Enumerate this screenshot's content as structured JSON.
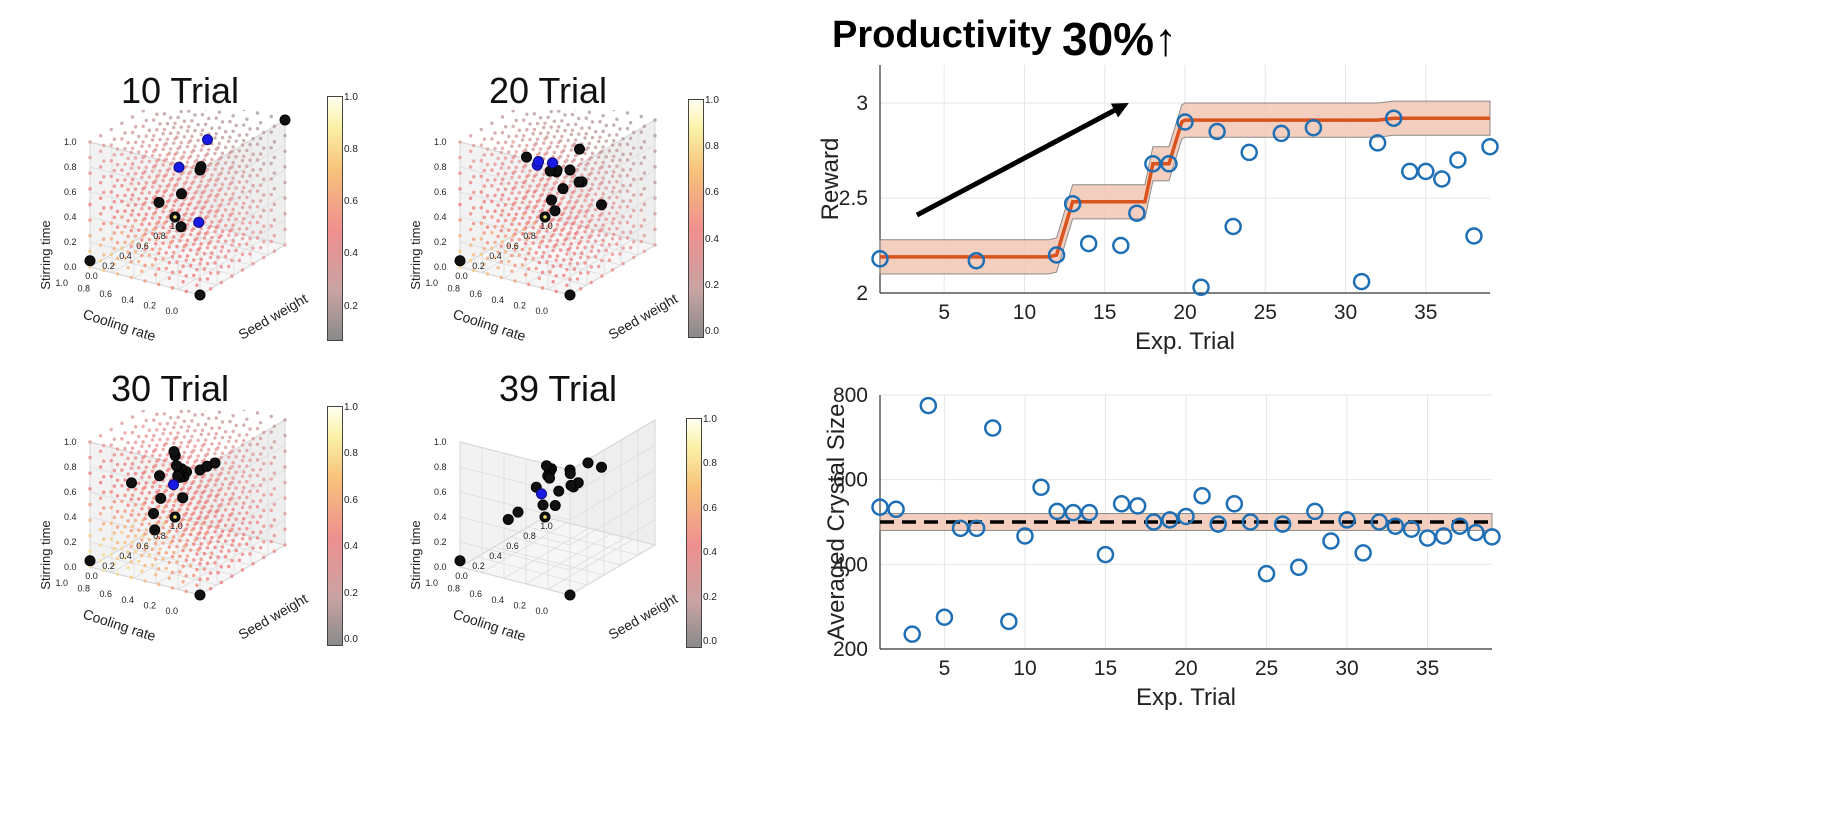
{
  "headline": {
    "title": "Productivity",
    "percent": "30%",
    "arrow": "↑"
  },
  "panels": [
    {
      "title": "10 Trial",
      "cbar_ticks": [
        "1.0",
        "0.8",
        "0.6",
        "0.4",
        "0.2"
      ]
    },
    {
      "title": "20 Trial",
      "cbar_ticks": [
        "1.0",
        "0.8",
        "0.6",
        "0.4",
        "0.2",
        "0.0"
      ]
    },
    {
      "title": "30 Trial",
      "cbar_ticks": [
        "1.0",
        "0.8",
        "0.6",
        "0.4",
        "0.2",
        "0.0"
      ]
    },
    {
      "title": "39 Trial",
      "cbar_ticks": [
        "1.0",
        "0.8",
        "0.6",
        "0.4",
        "0.2",
        "0.0"
      ]
    }
  ],
  "cube_axes": {
    "x_label": "Cooling rate",
    "y_label": "Seed weight",
    "z_label": "Stirring time",
    "x_ticks": [
      "0.0",
      "0.2",
      "0.4",
      "0.6",
      "0.8",
      "1.0"
    ],
    "y_ticks": [
      "1.0",
      "0.8",
      "0.6",
      "0.4",
      "0.2",
      "0.0"
    ],
    "z_ticks": [
      "0.0",
      "0.2",
      "0.4",
      "0.6",
      "0.8",
      "1.0"
    ]
  },
  "colors": {
    "series": "#1f6fb5",
    "mean_line": "#d9531e",
    "band": "#f3c6b5",
    "sampled": "#111111",
    "proposal": "#1a1ae6"
  },
  "chart_data": [
    {
      "type": "scatter",
      "title": "",
      "xlabel": "Exp. Trial",
      "ylabel": "Reward",
      "xlim": [
        1,
        39
      ],
      "ylim": [
        2,
        3.2
      ],
      "x_ticks": [
        5,
        10,
        15,
        20,
        25,
        30,
        35
      ],
      "y_ticks": [
        2,
        2.5,
        3
      ],
      "y_tick_labels": [
        "2",
        "2.5",
        "3"
      ],
      "grid": true,
      "series": [
        {
          "x": [
            1,
            7,
            12,
            13,
            14,
            16,
            17,
            18,
            19,
            20,
            21,
            22,
            23,
            24,
            26,
            28,
            31,
            32,
            33,
            34,
            35,
            36,
            37,
            38,
            39
          ],
          "y": [
            2.18,
            2.17,
            2.2,
            2.47,
            2.26,
            2.25,
            2.42,
            2.68,
            2.68,
            2.9,
            2.03,
            2.85,
            2.35,
            2.74,
            2.84,
            2.87,
            2.06,
            2.79,
            2.92,
            2.64,
            2.64,
            2.6,
            2.7,
            2.3,
            2.77
          ]
        },
        {
          "x": [
            1,
            11.5,
            12,
            13,
            17.5,
            18,
            19,
            19.8,
            20,
            32,
            33,
            39
          ],
          "y": [
            2.19,
            2.19,
            2.2,
            2.48,
            2.48,
            2.68,
            2.68,
            2.9,
            2.91,
            2.91,
            2.92,
            2.92
          ]
        }
      ],
      "band_halfwidth": 0.09,
      "annotations": [
        {
          "type": "arrow",
          "from": [
            3.3,
            2.41
          ],
          "to": [
            16.5,
            3.0
          ]
        }
      ]
    },
    {
      "type": "scatter",
      "title": "",
      "xlabel": "Exp. Trial",
      "ylabel": "Averaged Crystal Size",
      "xlim": [
        1,
        39
      ],
      "ylim": [
        200,
        800
      ],
      "x_ticks": [
        5,
        10,
        15,
        20,
        25,
        30,
        35
      ],
      "y_ticks": [
        200,
        400,
        600,
        800
      ],
      "grid": true,
      "series": [
        {
          "x": [
            1,
            2,
            3,
            4,
            5,
            6,
            7,
            8,
            9,
            10,
            11,
            12,
            13,
            14,
            15,
            16,
            17,
            18,
            19,
            20,
            21,
            22,
            23,
            24,
            25,
            26,
            27,
            28,
            29,
            30,
            31,
            32,
            33,
            34,
            35,
            36,
            37,
            38,
            39
          ],
          "y": [
            535,
            530,
            235,
            775,
            275,
            485,
            485,
            722,
            265,
            467,
            582,
            525,
            522,
            522,
            423,
            543,
            538,
            500,
            505,
            513,
            562,
            495,
            543,
            500,
            378,
            495,
            393,
            525,
            455,
            505,
            427,
            500,
            490,
            483,
            462,
            467,
            490,
            475,
            465
          ]
        }
      ],
      "reference_line": 500,
      "band": [
        480,
        520
      ]
    }
  ]
}
